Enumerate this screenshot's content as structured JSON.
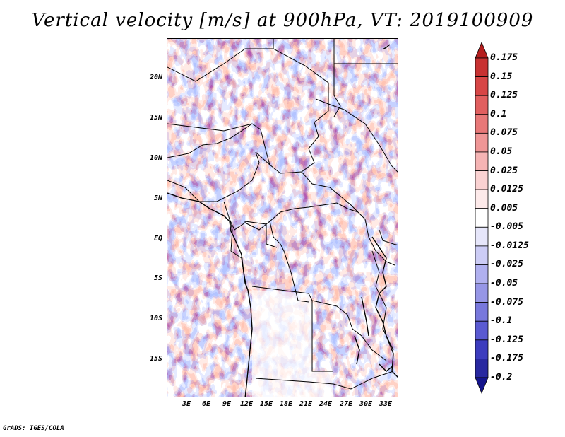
{
  "title": "Vertical velocity [m/s] at 900hPa, VT: 2019100909",
  "credit": "GrADS: IGES/COLA",
  "lat_labels": [
    "20N",
    "15N",
    "10N",
    "5N",
    "EQ",
    "5S",
    "10S",
    "15S"
  ],
  "lon_labels": [
    "3E",
    "6E",
    "9E",
    "12E",
    "15E",
    "18E",
    "21E",
    "24E",
    "27E",
    "30E",
    "33E"
  ],
  "colorbar": {
    "levels": [
      "0.175",
      "0.15",
      "0.125",
      "0.1",
      "0.075",
      "0.05",
      "0.025",
      "0.0125",
      "0.005",
      "-0.005",
      "-0.0125",
      "-0.025",
      "-0.05",
      "-0.075",
      "-0.1",
      "-0.125",
      "-0.175",
      "-0.2"
    ],
    "colors": [
      "#b41e1e",
      "#c83232",
      "#d74646",
      "#e15f5f",
      "#e87878",
      "#ef9696",
      "#f5b4b4",
      "#fad2d2",
      "#fdeaea",
      "#ffffff",
      "#e6e6fa",
      "#ccccf5",
      "#b0b0ef",
      "#9696e6",
      "#7878dc",
      "#5a5ad2",
      "#3c3cbe",
      "#2828a0",
      "#14148c"
    ]
  }
}
